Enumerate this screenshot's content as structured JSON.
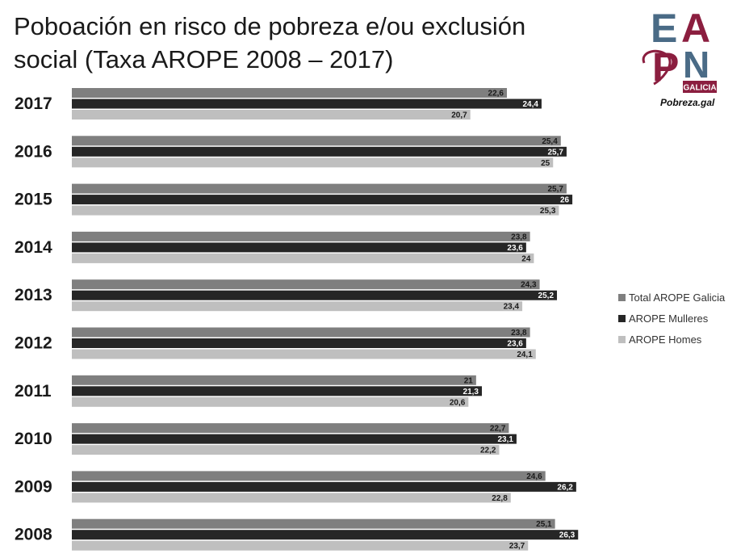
{
  "title": "Poboación en risco de pobreza e/ou exclusión social (Taxa AROPE 2008 – 2017)",
  "logo": {
    "letters": [
      "E",
      "A",
      "P",
      "N"
    ],
    "badge": "GALICIA",
    "caption": "Pobreza.gal"
  },
  "colors": {
    "total": "#7f7f7f",
    "mulleres": "#262626",
    "homes": "#bfbfbf",
    "logo_blue": "#4a6b86",
    "logo_red": "#8b1e3f"
  },
  "chart_data": {
    "type": "bar",
    "orientation": "horizontal",
    "categories": [
      "2017",
      "2016",
      "2015",
      "2014",
      "2013",
      "2012",
      "2011",
      "2010",
      "2009",
      "2008"
    ],
    "series": [
      {
        "name": "Total AROPE Galicia",
        "values": [
          22.6,
          25.4,
          25.7,
          23.8,
          24.3,
          23.8,
          21,
          22.7,
          24.6,
          25.1
        ],
        "labels": [
          "22,6",
          "25,4",
          "25,7",
          "23,8",
          "24,3",
          "23,8",
          "21",
          "22,7",
          "24,6",
          "25,1"
        ]
      },
      {
        "name": "AROPE Mulleres",
        "values": [
          24.4,
          25.7,
          26,
          23.6,
          25.2,
          23.6,
          21.3,
          23.1,
          26.2,
          26.3
        ],
        "labels": [
          "24,4",
          "25,7",
          "26",
          "23,6",
          "25,2",
          "23,6",
          "21,3",
          "23,1",
          "26,2",
          "26,3"
        ]
      },
      {
        "name": "AROPE Homes",
        "values": [
          20.7,
          25,
          25.3,
          24,
          23.4,
          24.1,
          20.6,
          22.2,
          22.8,
          23.7
        ],
        "labels": [
          "20,7",
          "25",
          "25,3",
          "24",
          "23,4",
          "24,1",
          "20,6",
          "22,2",
          "22,8",
          "23,7"
        ]
      }
    ],
    "legend_position": "right",
    "grid": false
  }
}
